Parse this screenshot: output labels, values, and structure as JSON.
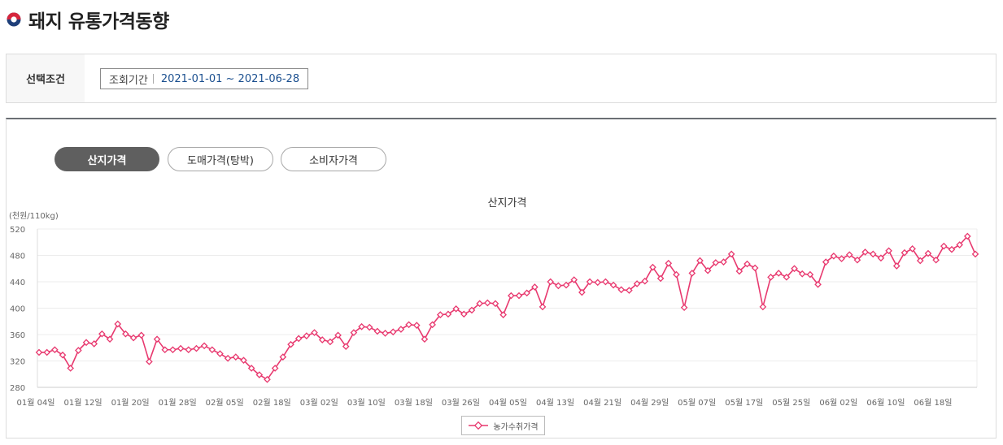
{
  "page": {
    "title": "돼지 유통가격동향"
  },
  "colors": {
    "series": "#e8396f",
    "title_icon_red": "#d7263d",
    "title_icon_blue": "#1f3f7a",
    "active_tab": "#5f5f5f"
  },
  "condition": {
    "label": "선택조건",
    "period_label": "조회기간",
    "period_value": "2021-01-01 ~ 2021-06-28"
  },
  "tabs": [
    {
      "label": "산지가격",
      "active": true
    },
    {
      "label": "도매가격(탕박)",
      "active": false
    },
    {
      "label": "소비자가격",
      "active": false
    }
  ],
  "chart_data": {
    "type": "line",
    "title": "산지가격",
    "ylabel": "(천원/110kg)",
    "ylim": [
      280,
      520
    ],
    "yticks": [
      280,
      320,
      360,
      400,
      440,
      480,
      520
    ],
    "xtick_labels": [
      "01월 04일",
      "01월 12일",
      "01월 20일",
      "01월 28일",
      "02월 05일",
      "02월 18일",
      "03월 02일",
      "03월 10일",
      "03월 18일",
      "03월 26일",
      "04월 05일",
      "04월 13일",
      "04월 21일",
      "04월 29일",
      "05월 07일",
      "05월 17일",
      "05월 25일",
      "06월 02일",
      "06월 10일",
      "06월 18일"
    ],
    "legend_position": "bottom",
    "grid": true,
    "series": [
      {
        "name": "농가수취가격",
        "values": [
          333,
          333,
          337,
          329,
          309,
          336,
          348,
          346,
          361,
          353,
          376,
          361,
          355,
          359,
          319,
          353,
          337,
          337,
          339,
          337,
          339,
          343,
          337,
          331,
          324,
          326,
          321,
          309,
          299,
          292,
          309,
          326,
          345,
          354,
          358,
          363,
          352,
          349,
          359,
          342,
          363,
          372,
          371,
          365,
          362,
          364,
          368,
          375,
          374,
          353,
          375,
          390,
          391,
          399,
          391,
          397,
          407,
          408,
          407,
          390,
          419,
          419,
          423,
          432,
          402,
          440,
          434,
          435,
          443,
          424,
          440,
          439,
          440,
          435,
          428,
          427,
          437,
          441,
          462,
          445,
          468,
          451,
          401,
          453,
          472,
          457,
          469,
          470,
          482,
          456,
          467,
          461,
          402,
          447,
          453,
          447,
          460,
          452,
          451,
          436,
          470,
          479,
          475,
          481,
          473,
          485,
          482,
          476,
          487,
          464,
          484,
          490,
          472,
          483,
          473,
          494,
          489,
          496,
          509,
          482
        ]
      }
    ]
  },
  "icons": {
    "title": "korea-emblem-icon",
    "legend": "diamond-line-icon"
  }
}
